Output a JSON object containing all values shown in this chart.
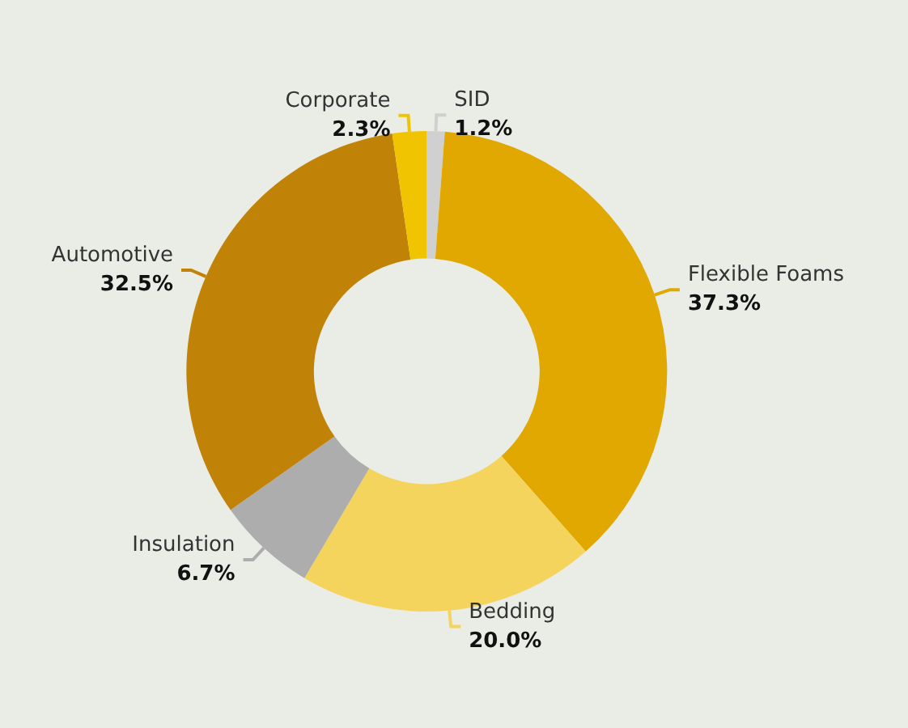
{
  "chart_data": {
    "type": "donut",
    "categories": [
      "SID",
      "Flexible Foams",
      "Bedding",
      "Insulation",
      "Automotive",
      "Corporate"
    ],
    "values": [
      1.2,
      37.3,
      20.0,
      6.7,
      32.5,
      2.3
    ],
    "value_labels": [
      "1.2%",
      "37.3%",
      "20.0%",
      "6.7%",
      "32.5%",
      "2.3%"
    ],
    "colors": [
      "#d0d0d0",
      "#e0a800",
      "#f5d45e",
      "#adadad",
      "#c08307",
      "#f0c400"
    ],
    "legend": false
  }
}
